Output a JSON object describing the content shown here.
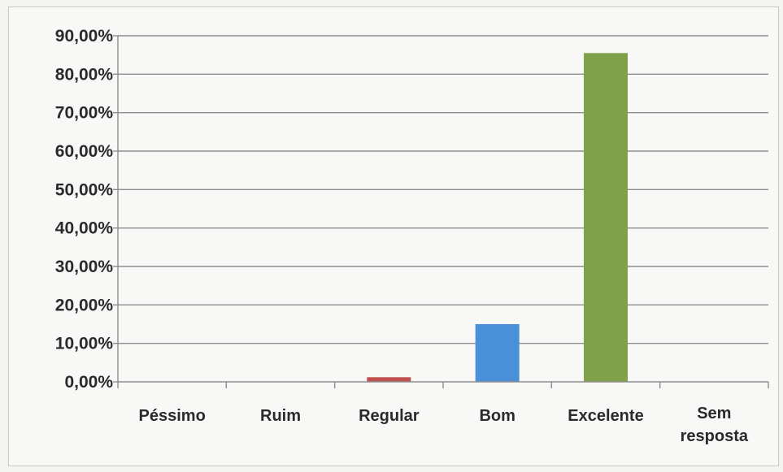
{
  "chart_data": {
    "type": "bar",
    "categories": [
      "Péssimo",
      "Ruim",
      "Regular",
      "Bom",
      "Excelente",
      "Sem resposta"
    ],
    "values": [
      0,
      0,
      1.2,
      15.0,
      85.5,
      0
    ],
    "ylim": [
      0,
      90
    ],
    "yticks": [
      0,
      10,
      20,
      30,
      40,
      50,
      60,
      70,
      80,
      90
    ],
    "ytick_labels": [
      "0,00%",
      "10,00%",
      "20,00%",
      "30,00%",
      "40,00%",
      "50,00%",
      "60,00%",
      "70,00%",
      "80,00%",
      "90,00%"
    ],
    "colors": [
      "#4f81bd",
      "#c0504d",
      "#c0504d",
      "#4a90d9",
      "#80a04a",
      "#4f81bd"
    ],
    "grid": true,
    "legend": "none"
  }
}
